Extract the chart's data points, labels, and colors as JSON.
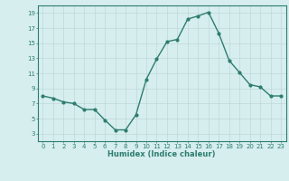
{
  "x": [
    0,
    1,
    2,
    3,
    4,
    5,
    6,
    7,
    8,
    9,
    10,
    11,
    12,
    13,
    14,
    15,
    16,
    17,
    18,
    19,
    20,
    21,
    22,
    23
  ],
  "y": [
    8.0,
    7.7,
    7.2,
    7.0,
    6.2,
    6.2,
    4.8,
    3.5,
    3.5,
    5.5,
    10.2,
    12.9,
    15.2,
    15.5,
    18.2,
    18.6,
    19.1,
    16.3,
    12.7,
    11.1,
    9.5,
    9.2,
    8.0,
    8.0
  ],
  "line_color": "#2e7d6e",
  "bg_color": "#d6eeee",
  "grid_color": "#c0d8d8",
  "xlabel": "Humidex (Indice chaleur)",
  "ylim": [
    2,
    20
  ],
  "xlim": [
    -0.5,
    23.5
  ],
  "yticks": [
    3,
    5,
    7,
    9,
    11,
    13,
    15,
    17,
    19
  ],
  "xticks": [
    0,
    1,
    2,
    3,
    4,
    5,
    6,
    7,
    8,
    9,
    10,
    11,
    12,
    13,
    14,
    15,
    16,
    17,
    18,
    19,
    20,
    21,
    22,
    23
  ],
  "tick_color": "#2e7d6e",
  "label_color": "#2e7d6e",
  "marker": "o",
  "markersize": 2.0,
  "linewidth": 1.0,
  "xlabel_fontsize": 6.0,
  "tick_fontsize": 5.0
}
